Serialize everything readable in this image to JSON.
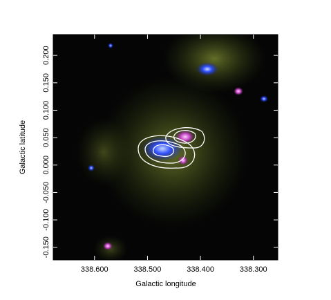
{
  "chart_data": {
    "type": "image",
    "x_label": "Galactic longitude",
    "y_label": "Galactic latitude",
    "xlim": [
      338.678,
      338.254
    ],
    "ylim": [
      -0.173,
      0.238
    ],
    "xticks": [
      {
        "value": 338.6,
        "label": "338.600"
      },
      {
        "value": 338.5,
        "label": "338.500"
      },
      {
        "value": 338.4,
        "label": "338.400"
      },
      {
        "value": 338.3,
        "label": "338.300"
      }
    ],
    "yticks": [
      {
        "value": -0.15,
        "label": "-0.150"
      },
      {
        "value": -0.1,
        "label": "-0.100"
      },
      {
        "value": -0.05,
        "label": "-0.050"
      },
      {
        "value": 0,
        "label": "0.000"
      },
      {
        "value": 0.05,
        "label": "0.050"
      },
      {
        "value": 0.1,
        "label": "0.100"
      },
      {
        "value": 0.15,
        "label": "0.150"
      },
      {
        "value": 0.2,
        "label": "0.200"
      }
    ]
  }
}
